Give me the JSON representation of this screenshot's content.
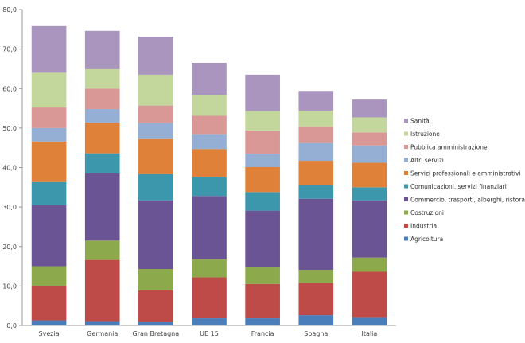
{
  "chart_data": {
    "type": "bar",
    "stacked": true,
    "categories": [
      "Svezia",
      "Germania",
      "Gran Bretagna",
      "UE 15",
      "Francia",
      "Spagna",
      "Italia"
    ],
    "ylim": [
      0,
      80
    ],
    "yticks": [
      "0,0",
      "10,0",
      "20,0",
      "30,0",
      "40,0",
      "50,0",
      "60,0",
      "70,0",
      "80,0"
    ],
    "grid": false,
    "legend_position": "right",
    "series": [
      {
        "name": "Agricoltura",
        "color": "#4a7ebb",
        "values": [
          1.3,
          1.1,
          1.0,
          1.8,
          1.8,
          2.6,
          2.1
        ]
      },
      {
        "name": "Industria",
        "color": "#be4b48",
        "values": [
          8.7,
          15.5,
          7.9,
          10.4,
          8.7,
          8.2,
          11.5
        ]
      },
      {
        "name": "Costruzioni",
        "color": "#8caa4b",
        "values": [
          5.0,
          4.9,
          5.4,
          4.5,
          4.2,
          3.3,
          3.6
        ]
      },
      {
        "name": "Commercio, trasporti, alberghi, ristoranti",
        "color": "#6b5493",
        "values": [
          15.5,
          17.0,
          17.4,
          16.1,
          14.4,
          18.0,
          14.5
        ]
      },
      {
        "name": "Comunicazioni, servizi finanziari",
        "color": "#3c97ad",
        "values": [
          5.8,
          5.1,
          6.6,
          4.8,
          4.7,
          3.5,
          3.3
        ]
      },
      {
        "name": "Servizi professionali e amministrativi",
        "color": "#e0813a",
        "values": [
          10.3,
          7.8,
          8.9,
          7.1,
          6.3,
          6.1,
          6.2
        ]
      },
      {
        "name": "Altri servizi",
        "color": "#94aed4",
        "values": [
          3.4,
          3.4,
          4.1,
          3.6,
          3.4,
          4.5,
          4.4
        ]
      },
      {
        "name": "Pubblica amministrazione",
        "color": "#d99795",
        "values": [
          5.2,
          5.2,
          4.4,
          4.8,
          5.9,
          4.1,
          3.3
        ]
      },
      {
        "name": "Istruzione",
        "color": "#c3d69b",
        "values": [
          8.8,
          4.9,
          7.8,
          5.3,
          4.9,
          4.1,
          3.8
        ]
      },
      {
        "name": "Sanità",
        "color": "#a995bd",
        "values": [
          11.8,
          9.7,
          9.6,
          8.1,
          9.2,
          5.0,
          4.5
        ]
      }
    ]
  }
}
